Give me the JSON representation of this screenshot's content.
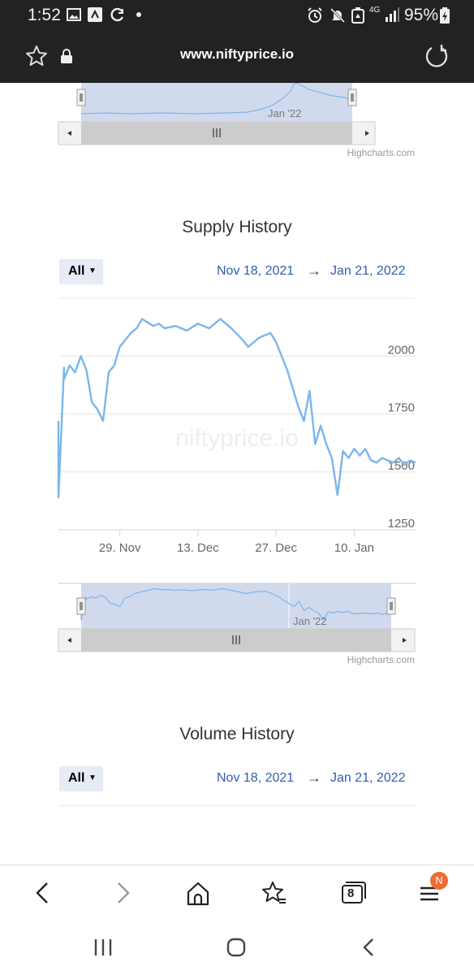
{
  "status_bar": {
    "time": "1:52",
    "battery": "95%",
    "network": "4G"
  },
  "browser": {
    "url": "www.niftyprice.io",
    "icons": [
      "star-icon",
      "lock-icon",
      "reload-icon"
    ]
  },
  "top_navigator": {
    "tick_label": "Jan '22",
    "credits": "Highcharts.com"
  },
  "supply_chart": {
    "title": "Supply History",
    "range_button": "All",
    "from_date": "Nov 18, 2021",
    "arrow": "→",
    "to_date": "Jan 21, 2022",
    "watermark": "niftyprice.io",
    "credits": "Highcharts.com",
    "navigator_tick": "Jan '22"
  },
  "chart_data": {
    "type": "line",
    "title": "Supply History",
    "x_tick_labels": [
      "29. Nov",
      "13. Dec",
      "27. Dec",
      "10. Jan"
    ],
    "y_tick_labels": [
      "2000",
      "1750",
      "1500",
      "1250"
    ],
    "ylim": [
      1250,
      2250
    ],
    "xlim": [
      "2021-11-18",
      "2022-01-21"
    ],
    "grid": true,
    "series": [
      {
        "color": "#7cb5ec",
        "x": [
          "2021-11-18",
          "2021-11-18",
          "2021-11-19",
          "2021-11-19",
          "2021-11-20",
          "2021-11-21",
          "2021-11-22",
          "2021-11-23",
          "2021-11-24",
          "2021-11-25",
          "2021-11-26",
          "2021-11-27",
          "2021-11-28",
          "2021-11-29",
          "2021-11-30",
          "2021-12-01",
          "2021-12-02",
          "2021-12-03",
          "2021-12-05",
          "2021-12-06",
          "2021-12-07",
          "2021-12-09",
          "2021-12-11",
          "2021-12-13",
          "2021-12-15",
          "2021-12-17",
          "2021-12-19",
          "2021-12-21",
          "2021-12-22",
          "2021-12-24",
          "2021-12-26",
          "2021-12-27",
          "2021-12-29",
          "2021-12-30",
          "2021-12-31",
          "2022-01-01",
          "2022-01-02",
          "2022-01-03",
          "2022-01-04",
          "2022-01-05",
          "2022-01-06",
          "2022-01-07",
          "2022-01-08",
          "2022-01-09",
          "2022-01-10",
          "2022-01-11",
          "2022-01-12",
          "2022-01-13",
          "2022-01-14",
          "2022-01-15",
          "2022-01-16",
          "2022-01-17",
          "2022-01-18",
          "2022-01-19",
          "2022-01-20",
          "2022-01-21"
        ],
        "y": [
          1720,
          1390,
          1950,
          1900,
          1960,
          1930,
          2000,
          1940,
          1800,
          1770,
          1720,
          1930,
          1960,
          2040,
          2070,
          2100,
          2120,
          2160,
          2130,
          2140,
          2120,
          2130,
          2110,
          2140,
          2120,
          2160,
          2120,
          2070,
          2040,
          2080,
          2100,
          2060,
          1940,
          1860,
          1780,
          1720,
          1850,
          1620,
          1700,
          1620,
          1560,
          1400,
          1590,
          1560,
          1600,
          1570,
          1600,
          1550,
          1540,
          1560,
          1550,
          1540,
          1560,
          1530,
          1550,
          1540
        ]
      }
    ]
  },
  "volume_chart": {
    "title": "Volume History",
    "range_button": "All",
    "from_date": "Nov 18, 2021",
    "arrow": "→",
    "to_date": "Jan 21, 2022"
  },
  "bottom_nav": {
    "tabs_count": "8",
    "badge": "N",
    "icons": [
      "back-icon",
      "forward-icon",
      "home-icon",
      "bookmarks-icon",
      "tabs-icon",
      "menu-icon"
    ]
  }
}
